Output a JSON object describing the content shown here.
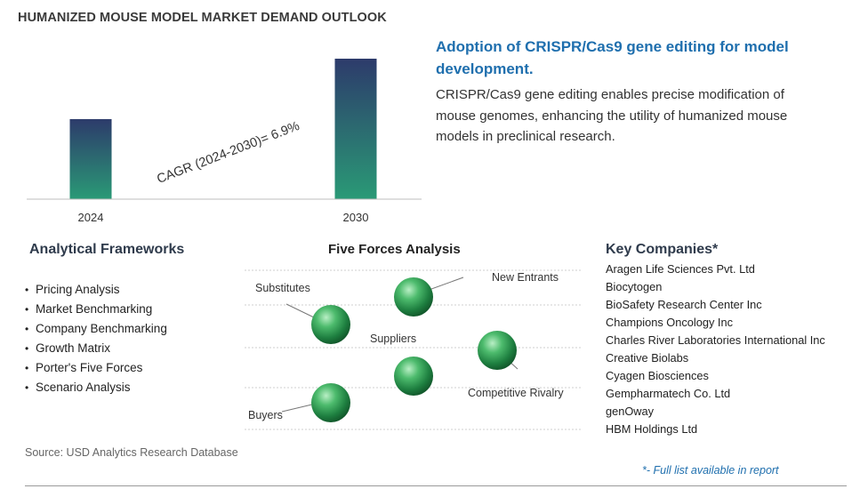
{
  "title": "HUMANIZED MOUSE MODEL MARKET DEMAND OUTLOOK",
  "chart_data": {
    "type": "bar",
    "categories": [
      "2024",
      "2030"
    ],
    "values": [
      0.57,
      1.0
    ],
    "value_units": "relative (unlabeled)",
    "annotation": "CAGR (2024-2030)=   6.9%",
    "ylim": [
      0,
      1.0
    ],
    "grid": false,
    "colors": [
      "#2d3b6b",
      "#2a9a76"
    ]
  },
  "highlight": {
    "title": "Adoption of CRISPR/Cas9 gene editing for model development.",
    "text": "CRISPR/Cas9 gene editing enables precise modification of mouse genomes, enhancing the utility of humanized mouse models in preclinical research."
  },
  "frameworks": {
    "title": "Analytical Frameworks",
    "items": [
      "Pricing Analysis",
      "Market Benchmarking",
      "Company Benchmarking",
      "Growth Matrix",
      "Porter's Five Forces",
      "Scenario Analysis"
    ]
  },
  "five_forces": {
    "title": "Five Forces Analysis",
    "labels": {
      "substitutes": "Substitutes",
      "new_entrants": "New Entrants",
      "suppliers": "Suppliers",
      "competitive_rivalry": "Competitive Rivalry",
      "buyers": "Buyers"
    },
    "sphere_color": "#2e9a55"
  },
  "companies": {
    "title": "Key Companies*",
    "items": [
      "Aragen Life Sciences Pvt. Ltd",
      "Biocytogen",
      "BioSafety Research Center Inc",
      "Champions Oncology Inc",
      "Charles River Laboratories International Inc",
      "Creative Biolabs",
      "Cyagen Biosciences",
      "Gempharmatech Co. Ltd",
      "genOway",
      "HBM Holdings Ltd"
    ],
    "note": "*- Full list available in report"
  },
  "source": "Source: USD Analytics Research Database"
}
